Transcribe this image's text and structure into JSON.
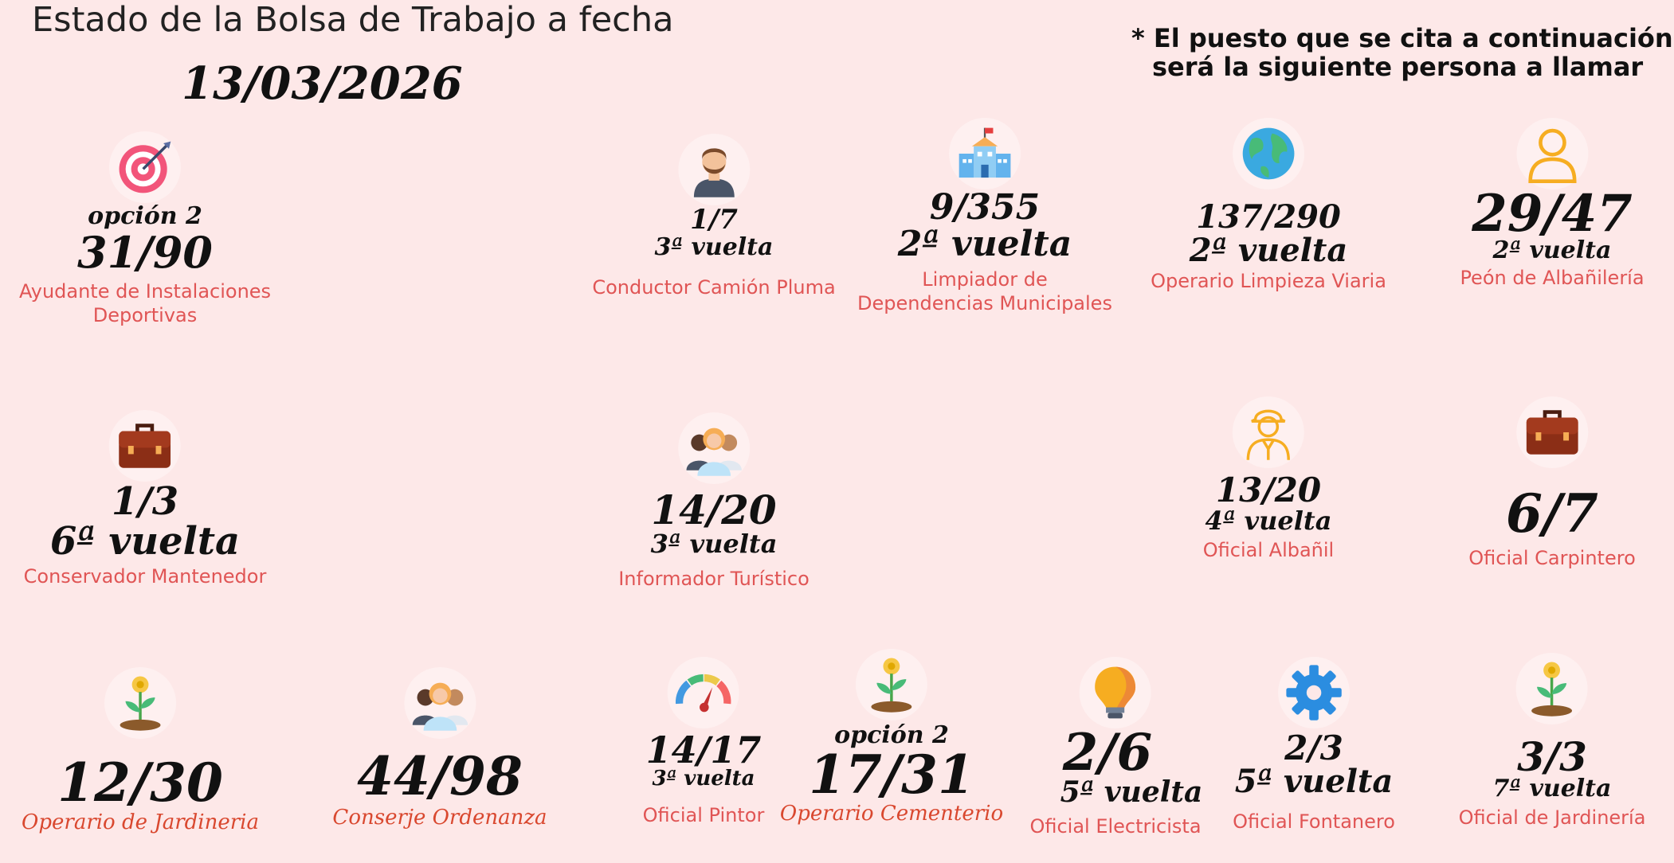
{
  "header": {
    "title": "Estado de la Bolsa de Trabajo a fecha",
    "date": "13/03/2026",
    "note_line1": "* El puesto que se cita a continuación",
    "note_line2": "será la siguiente persona a llamar"
  },
  "cards": [
    {
      "icon": "target-icon",
      "option": "opción 2",
      "count": "31/90",
      "round": "",
      "label": "Ayudante de Instalaciones",
      "label2": "Deportivas"
    },
    {
      "icon": "man-avatar-icon",
      "option": "",
      "count": "1/7",
      "round": "3ª vuelta",
      "label": "Conductor Camión Pluma",
      "label2": ""
    },
    {
      "icon": "school-building-icon",
      "option": "",
      "count": "9/355",
      "round": "2ª vuelta",
      "label": "Limpiador de",
      "label2": "Dependencias Municipales"
    },
    {
      "icon": "globe-icon",
      "option": "",
      "count": "137/290",
      "round": "2ª vuelta",
      "label": "Operario Limpieza Viaria",
      "label2": ""
    },
    {
      "icon": "user-outline-icon",
      "option": "",
      "count": "29/47",
      "round": "2ª vuelta",
      "label": "Peón de Albañilería",
      "label2": ""
    },
    {
      "icon": "briefcase-icon",
      "option": "",
      "count": "1/3",
      "round": "6ª vuelta",
      "label": "Conservador Mantenedor",
      "label2": ""
    },
    {
      "icon": "people-group-icon",
      "option": "",
      "count": "14/20",
      "round": "3ª vuelta",
      "label": "Informador Turístico",
      "label2": ""
    },
    {
      "icon": "worker-outline-icon",
      "option": "",
      "count": "13/20",
      "round": "4ª vuelta",
      "label": "Oficial Albañil",
      "label2": ""
    },
    {
      "icon": "briefcase-icon",
      "option": "",
      "count": "6/7",
      "round": "",
      "label": "Oficial Carpintero",
      "label2": ""
    },
    {
      "icon": "sprout-coin-icon",
      "option": "",
      "count": "12/30",
      "round": "",
      "label": "Operario de Jardineria",
      "label2": ""
    },
    {
      "icon": "people-group-icon",
      "option": "",
      "count": "44/98",
      "round": "",
      "label": "Conserje Ordenanza",
      "label2": ""
    },
    {
      "icon": "gauge-icon",
      "option": "",
      "count": "14/17",
      "round": "3ª vuelta",
      "label": "Oficial Pintor",
      "label2": ""
    },
    {
      "icon": "sprout-coin-icon",
      "option": "opción 2",
      "count": "17/31",
      "round": "",
      "label": "Operario Cementerio",
      "label2": ""
    },
    {
      "icon": "lightbulb-icon",
      "option": "",
      "count": "2/6",
      "round": "5ª vuelta",
      "label": "Oficial Electricista",
      "label2": ""
    },
    {
      "icon": "gear-icon",
      "option": "",
      "count": "2/3",
      "round": "5ª vuelta",
      "label": "Oficial Fontanero",
      "label2": ""
    },
    {
      "icon": "sprout-coin-icon",
      "option": "",
      "count": "3/3",
      "round": "7ª vuelta",
      "label": "Oficial de Jardinería",
      "label2": ""
    }
  ],
  "colors": {
    "background": "#fde8e8",
    "label": "#e05555",
    "label_serif": "#d9482f",
    "number": "#111111"
  }
}
